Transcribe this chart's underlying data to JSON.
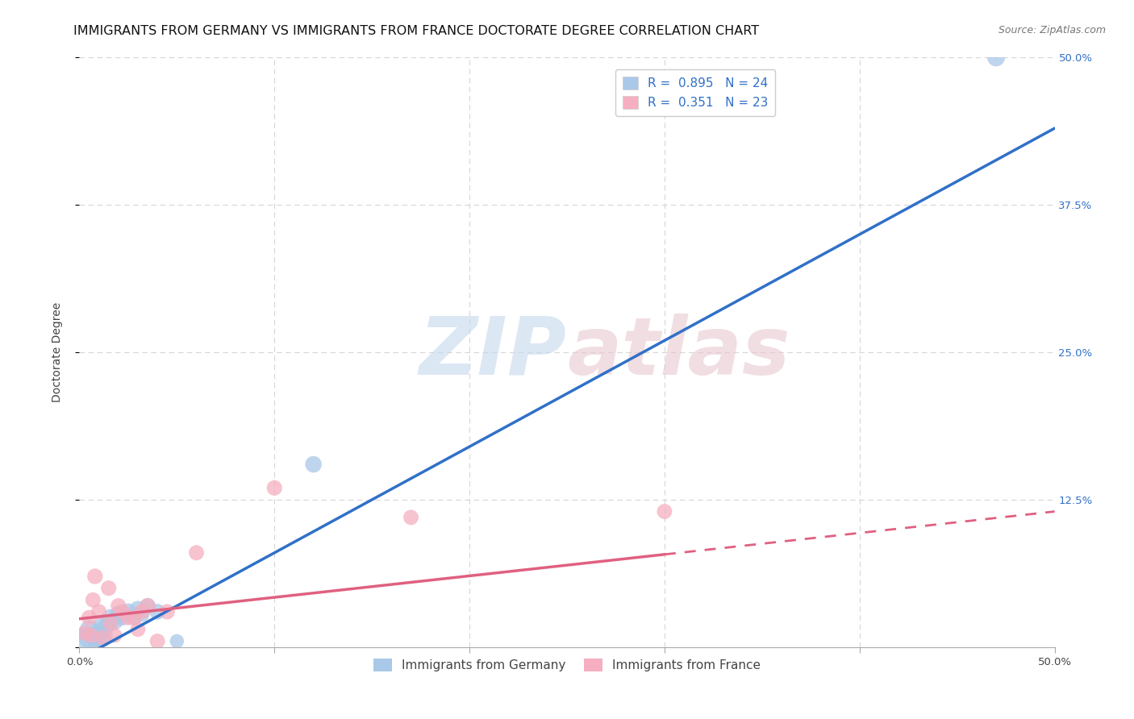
{
  "title": "IMMIGRANTS FROM GERMANY VS IMMIGRANTS FROM FRANCE DOCTORATE DEGREE CORRELATION CHART",
  "source": "Source: ZipAtlas.com",
  "ylabel": "Doctorate Degree",
  "xlim": [
    0,
    0.5
  ],
  "ylim": [
    0,
    0.5
  ],
  "xticks": [
    0.0,
    0.1,
    0.2,
    0.3,
    0.4,
    0.5
  ],
  "yticks": [
    0.0,
    0.125,
    0.25,
    0.375,
    0.5
  ],
  "ytick_labels_right": [
    "",
    "12.5%",
    "25.0%",
    "37.5%",
    "50.0%"
  ],
  "xtick_labels": [
    "0.0%",
    "",
    "",
    "",
    "",
    "50.0%"
  ],
  "germany_R": 0.895,
  "germany_N": 24,
  "france_R": 0.351,
  "france_N": 23,
  "germany_color": "#aac8e8",
  "france_color": "#f5afc0",
  "germany_line_color": "#3070c8",
  "france_line_color": "#e06080",
  "germany_scatter_x": [
    0.003,
    0.005,
    0.005,
    0.007,
    0.008,
    0.009,
    0.01,
    0.011,
    0.012,
    0.013,
    0.015,
    0.016,
    0.018,
    0.02,
    0.022,
    0.025,
    0.028,
    0.03,
    0.032,
    0.035,
    0.04,
    0.05,
    0.12,
    0.47
  ],
  "germany_scatter_y": [
    0.004,
    0.008,
    0.015,
    0.01,
    0.005,
    0.012,
    0.008,
    0.018,
    0.015,
    0.01,
    0.02,
    0.025,
    0.022,
    0.028,
    0.025,
    0.03,
    0.025,
    0.032,
    0.028,
    0.035,
    0.03,
    0.005,
    0.155,
    0.5
  ],
  "germany_scatter_sizes": [
    700,
    350,
    280,
    250,
    200,
    220,
    260,
    200,
    230,
    210,
    250,
    230,
    240,
    220,
    200,
    220,
    200,
    230,
    200,
    200,
    200,
    160,
    220,
    250
  ],
  "france_scatter_x": [
    0.003,
    0.005,
    0.006,
    0.007,
    0.008,
    0.01,
    0.012,
    0.015,
    0.016,
    0.018,
    0.02,
    0.022,
    0.025,
    0.028,
    0.03,
    0.032,
    0.035,
    0.04,
    0.045,
    0.06,
    0.1,
    0.17,
    0.3
  ],
  "france_scatter_y": [
    0.012,
    0.025,
    0.01,
    0.04,
    0.06,
    0.03,
    0.008,
    0.05,
    0.02,
    0.01,
    0.035,
    0.03,
    0.025,
    0.025,
    0.015,
    0.03,
    0.035,
    0.005,
    0.03,
    0.08,
    0.135,
    0.11,
    0.115
  ],
  "france_scatter_sizes": [
    200,
    190,
    180,
    185,
    195,
    190,
    185,
    190,
    185,
    180,
    190,
    185,
    190,
    185,
    180,
    185,
    190,
    185,
    190,
    185,
    190,
    185,
    185
  ],
  "germany_trend_x": [
    0.0,
    0.5
  ],
  "germany_trend_y": [
    -0.01,
    0.44
  ],
  "france_trend_x": [
    0.0,
    0.5
  ],
  "france_trend_y": [
    0.024,
    0.115
  ],
  "france_trend_solid_end_x": 0.3,
  "watermark_zip": "ZIP",
  "watermark_atlas": "atlas",
  "background_color": "#ffffff",
  "grid_color": "#cccccc",
  "title_fontsize": 11.5,
  "axis_label_fontsize": 10,
  "tick_fontsize": 9.5,
  "legend_fontsize": 11,
  "source_fontsize": 9
}
